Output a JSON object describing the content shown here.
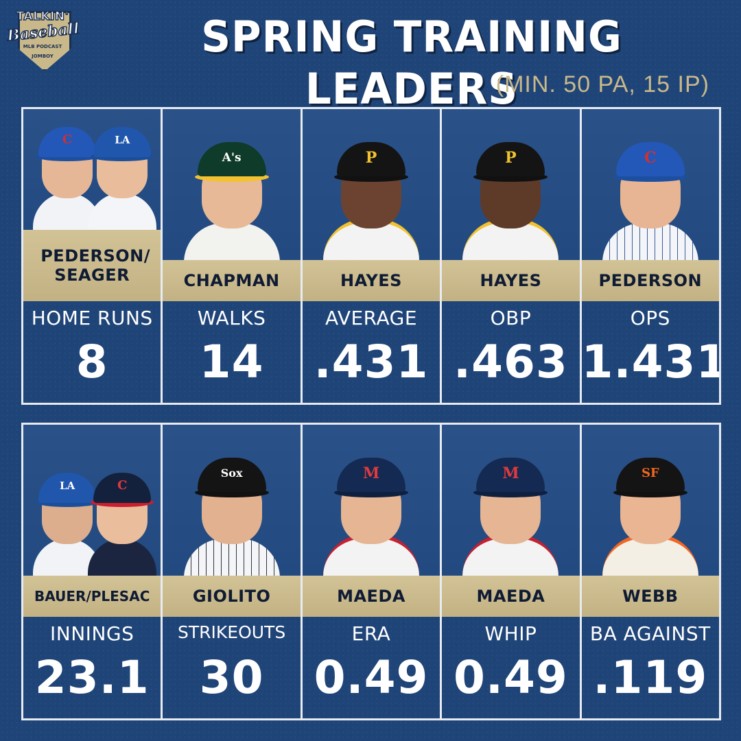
{
  "logo": {
    "line1": "TALKIN'",
    "line2": "Baseball",
    "line3": "MLB PODCAST",
    "line4": "JOMBOY"
  },
  "title": "SPRING TRAINING LEADERS",
  "subtitle": "(MIN. 50 PA, 15 IP)",
  "colors": {
    "background": "#1f4478",
    "name_bar": "#c9b98a",
    "border": "#e8ecf2",
    "text": "#ffffff"
  },
  "rows": [
    {
      "cards": [
        {
          "name": "PEDERSON/ SEAGER",
          "stat": "HOME RUNS",
          "value": "8"
        },
        {
          "name": "CHAPMAN",
          "stat": "WALKS",
          "value": "14"
        },
        {
          "name": "HAYES",
          "stat": "AVERAGE",
          "value": ".431"
        },
        {
          "name": "HAYES",
          "stat": "OBP",
          "value": ".463"
        },
        {
          "name": "PEDERSON",
          "stat": "OPS",
          "value": "1.431"
        }
      ]
    },
    {
      "cards": [
        {
          "name": "BAUER/PLESAC",
          "stat": "INNINGS",
          "value": "23.1"
        },
        {
          "name": "GIOLITO",
          "stat": "STRIKEOUTS",
          "value": "30"
        },
        {
          "name": "MAEDA",
          "stat": "ERA",
          "value": "0.49"
        },
        {
          "name": "MAEDA",
          "stat": "WHIP",
          "value": "0.49"
        },
        {
          "name": "WEBB",
          "stat": "BA AGAINST",
          "value": ".119"
        }
      ]
    }
  ],
  "icons": {
    "logo": "talkin-baseball-logo",
    "player": "player-photo"
  }
}
